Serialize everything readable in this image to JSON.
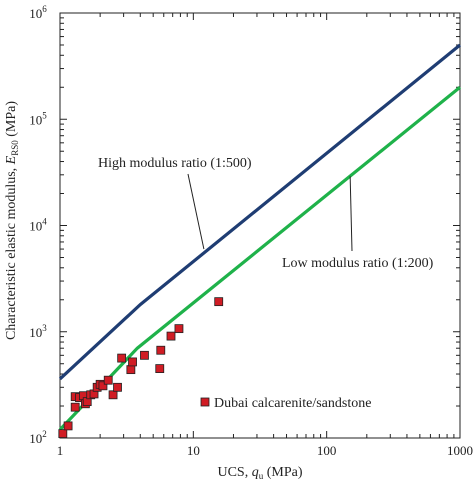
{
  "chart_data": {
    "type": "scatter",
    "xlabel": {
      "main": "UCS, ",
      "var": "q",
      "sub": "u",
      "unit": " (MPa)"
    },
    "ylabel": {
      "main": "Characteristic elastic modulus, ",
      "var": "E",
      "sub": "RS0",
      "unit": " (MPa)"
    },
    "xscale": "log",
    "yscale": "log",
    "xlim": [
      1,
      1000
    ],
    "ylim": [
      100,
      1000000
    ],
    "x_ticks": [
      {
        "value": 1,
        "label": "1"
      },
      {
        "value": 10,
        "label": "10"
      },
      {
        "value": 100,
        "label": "100"
      },
      {
        "value": 1000,
        "label": "1000"
      }
    ],
    "y_ticks": [
      {
        "value": 100,
        "base": "10",
        "exp": "2"
      },
      {
        "value": 1000,
        "base": "10",
        "exp": "3"
      },
      {
        "value": 10000,
        "base": "10",
        "exp": "4"
      },
      {
        "value": 100000,
        "base": "10",
        "exp": "5"
      },
      {
        "value": 1000000,
        "base": "10",
        "exp": "6"
      }
    ],
    "grid": false,
    "series": [
      {
        "kind": "line",
        "label": "High modulus ratio (1:500)",
        "color": "#1f3d73",
        "points": [
          [
            1,
            360
          ],
          [
            4,
            1800
          ],
          [
            1000,
            500000
          ]
        ]
      },
      {
        "kind": "line",
        "label": "Low modulus ratio (1:200)",
        "color": "#1fb24a",
        "points": [
          [
            1,
            120
          ],
          [
            3.8,
            700
          ],
          [
            1000,
            200000
          ]
        ]
      },
      {
        "kind": "scatter",
        "name": "Dubai calcarenite/sandstone",
        "color": "#d01c24",
        "edge": "#222222",
        "points": [
          [
            1.05,
            110
          ],
          [
            1.15,
            130
          ],
          [
            1.3,
            195
          ],
          [
            1.3,
            245
          ],
          [
            1.4,
            240
          ],
          [
            1.5,
            250
          ],
          [
            1.55,
            210
          ],
          [
            1.6,
            220
          ],
          [
            1.7,
            255
          ],
          [
            1.8,
            260
          ],
          [
            1.9,
            300
          ],
          [
            2.0,
            320
          ],
          [
            2.1,
            310
          ],
          [
            2.3,
            350
          ],
          [
            2.5,
            255
          ],
          [
            2.7,
            300
          ],
          [
            2.9,
            565
          ],
          [
            3.4,
            440
          ],
          [
            3.5,
            520
          ],
          [
            4.3,
            600
          ],
          [
            5.6,
            450
          ],
          [
            5.7,
            670
          ],
          [
            6.8,
            910
          ],
          [
            7.8,
            1070
          ],
          [
            15.5,
            1920
          ]
        ]
      }
    ],
    "annotations": [
      {
        "text": "High modulus ratio (1:500)",
        "target_series": 0
      },
      {
        "text": "Low modulus ratio (1:200)",
        "target_series": 1
      }
    ],
    "legend": {
      "position": "lower-right",
      "entries": [
        "Dubai calcarenite/sandstone"
      ]
    }
  }
}
